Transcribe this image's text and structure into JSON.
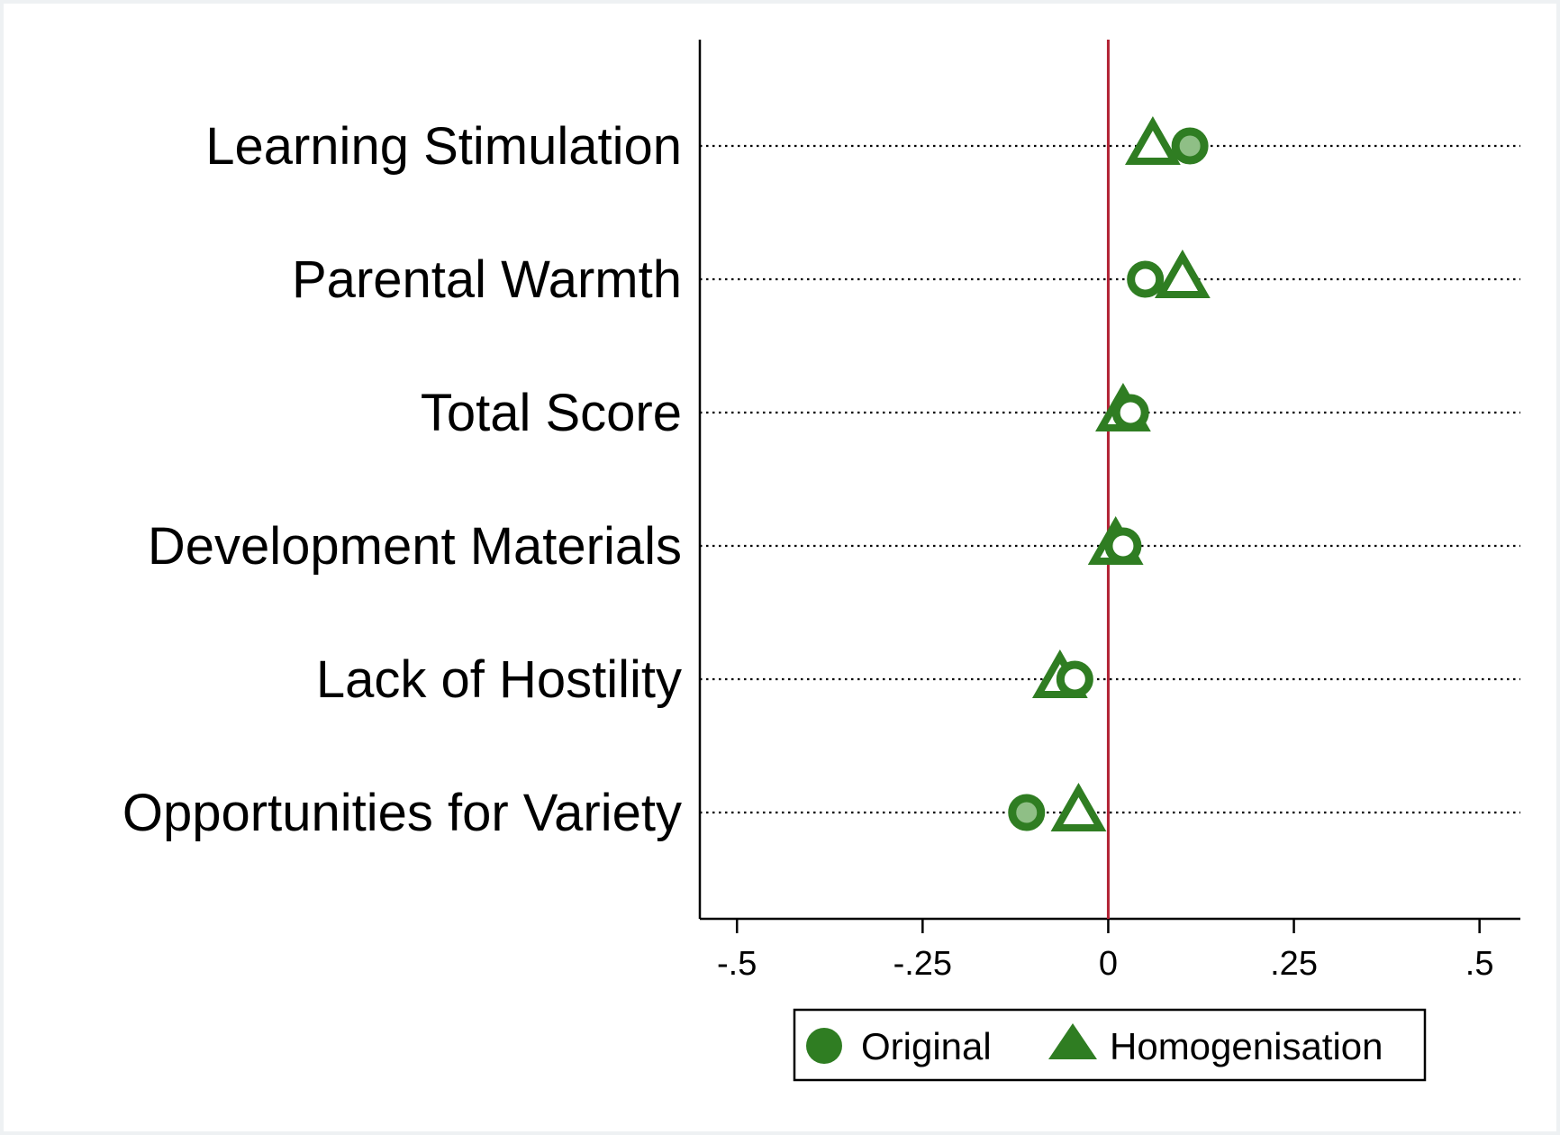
{
  "chart_data": {
    "type": "scatter",
    "title": "",
    "xlabel": "",
    "ylabel": "",
    "xlim": [
      -0.55,
      0.555
    ],
    "x_ticks": [
      -0.5,
      -0.25,
      0,
      0.25,
      0.5
    ],
    "x_tick_labels": [
      "-.5",
      "-.25",
      "0",
      ".25",
      ".5"
    ],
    "reference_line": {
      "x": 0,
      "color": "#b22234"
    },
    "categories": [
      "Learning Stimulation",
      "Parental Warmth",
      "Total Score",
      "Development Materials",
      "Lack of Hostility",
      "Opportunities for Variety"
    ],
    "series": [
      {
        "name": "Original",
        "marker": "circle",
        "values": [
          0.11,
          0.05,
          0.03,
          0.02,
          -0.045,
          -0.11
        ],
        "significant": [
          true,
          false,
          false,
          false,
          false,
          true
        ]
      },
      {
        "name": "Homogenisation",
        "marker": "triangle",
        "values": [
          0.06,
          0.1,
          0.02,
          0.01,
          -0.065,
          -0.04
        ],
        "significant": [
          false,
          false,
          false,
          false,
          false,
          false
        ]
      }
    ],
    "grid": "dotted horizontal lines per category",
    "legend_position": "bottom",
    "colors": {
      "marker": "#2f7d22",
      "marker_light": "#8fbf86",
      "axis": "#000000",
      "background": "#ffffff",
      "frame": "#eef1f3"
    }
  }
}
